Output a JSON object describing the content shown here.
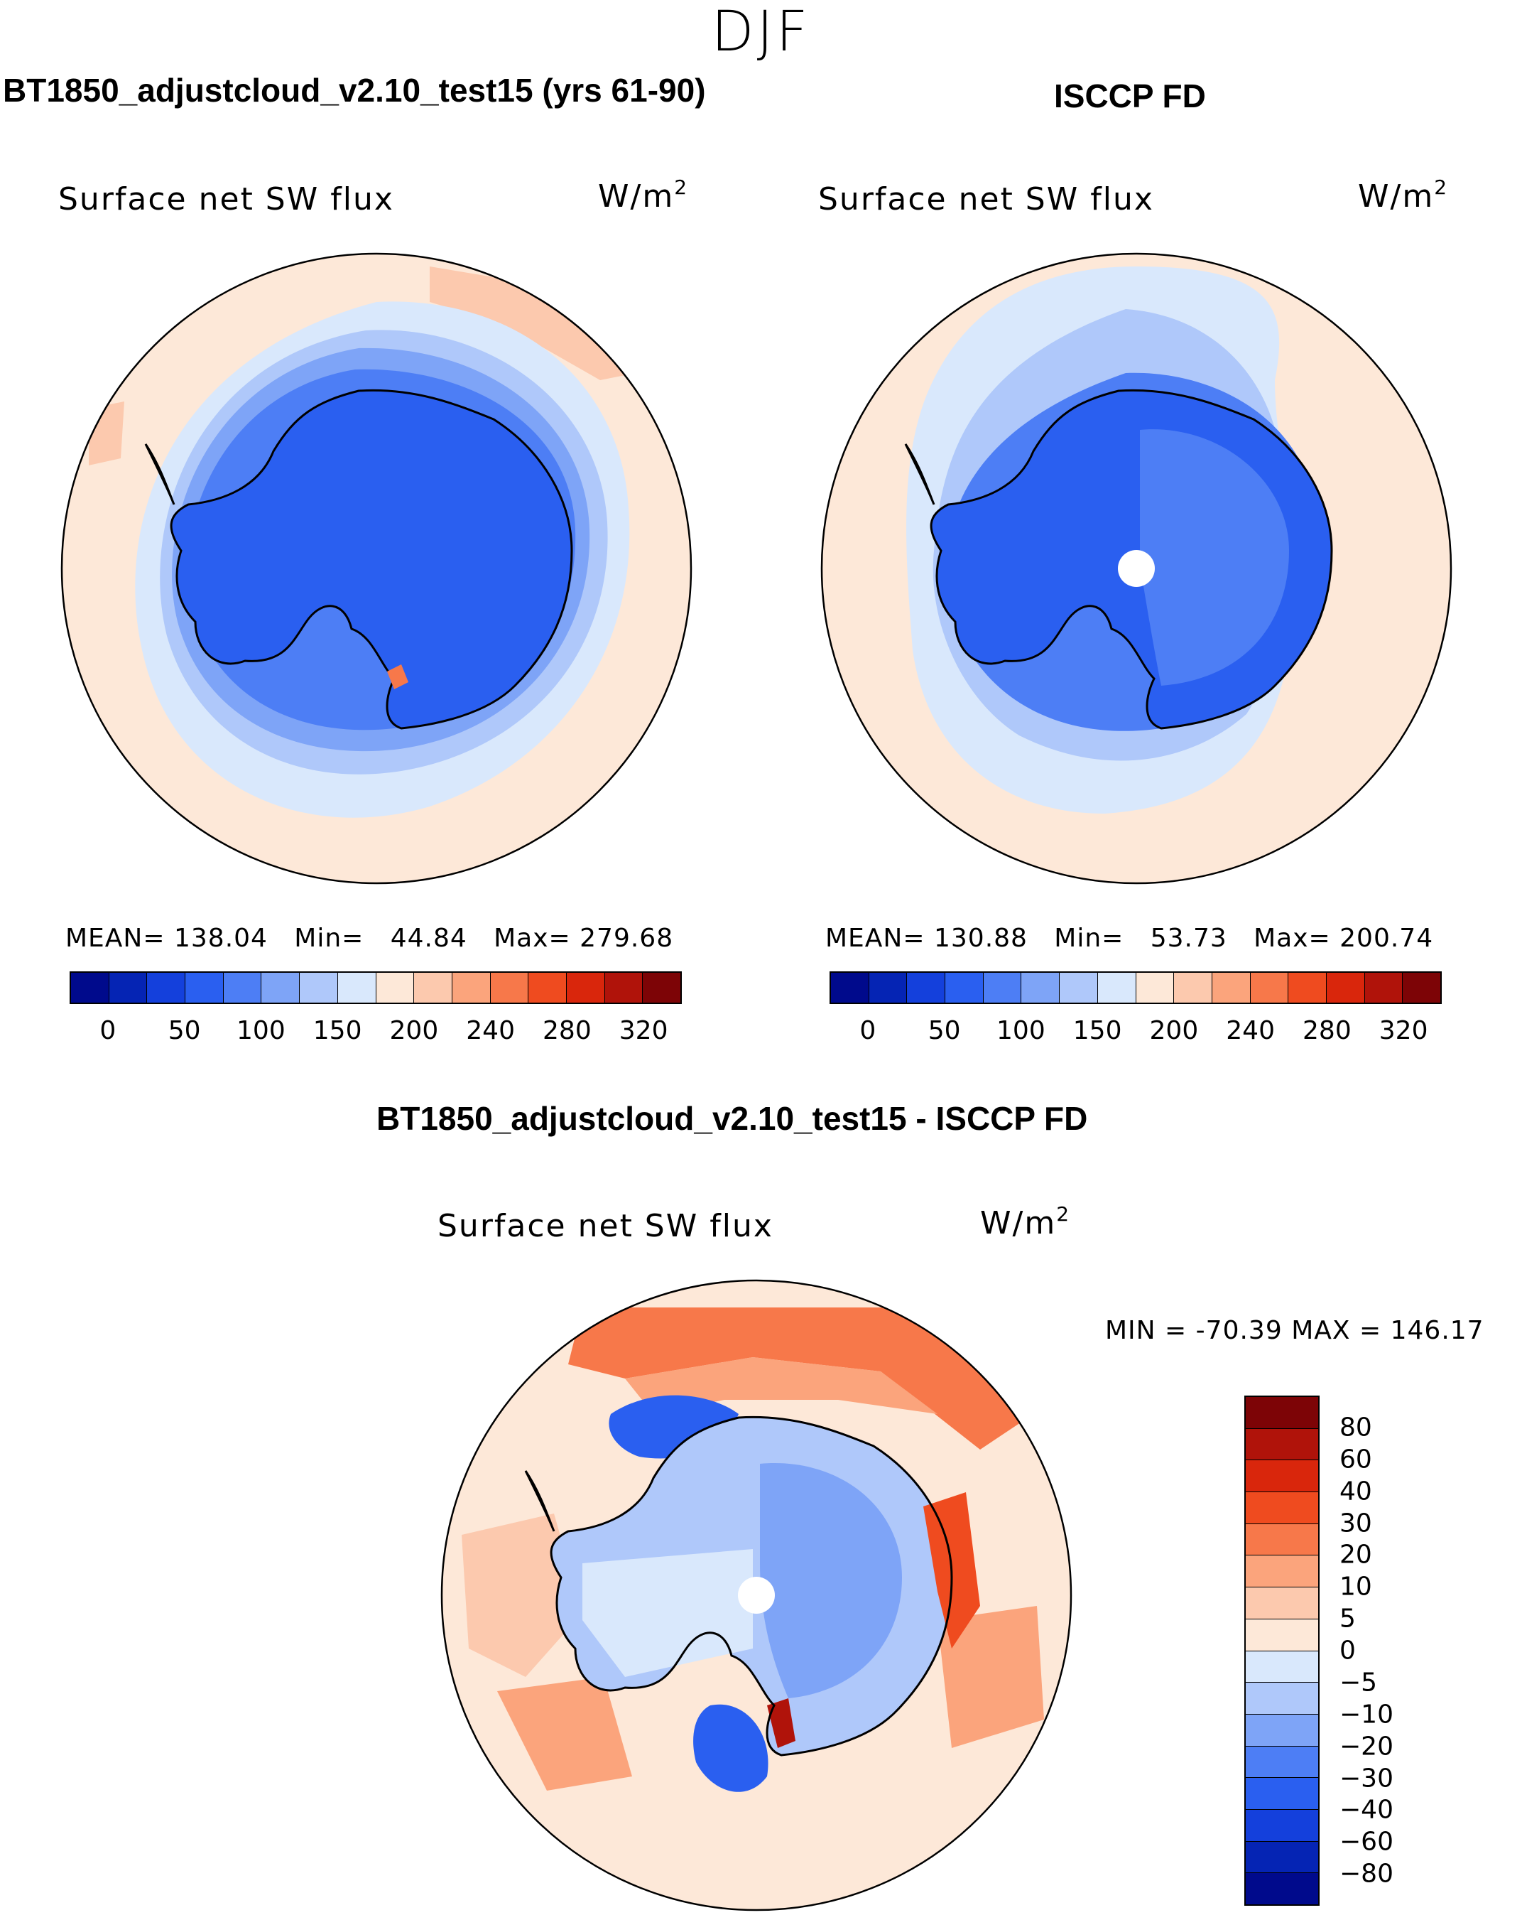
{
  "chart_data": [
    {
      "type": "heatmap",
      "projection": "south-polar-stereographic",
      "season": "DJF",
      "title": "BT1850_adjustcloud_v2.10_test15 (yrs 61-90)",
      "variable": "Surface net SW flux",
      "units": "W/m2",
      "stats": {
        "mean": "138.04",
        "min": "44.84",
        "max": "279.68"
      },
      "colorbar_ticks": [
        "0",
        "50",
        "100",
        "150",
        "200",
        "240",
        "280",
        "320"
      ],
      "colorbar_colors": [
        "#000a8c",
        "#0524b4",
        "#1440dc",
        "#2a5ff0",
        "#4d7ef5",
        "#7ea4f7",
        "#afc8fa",
        "#d9e8fc",
        "#fde8d8",
        "#fcc9ae",
        "#fba47c",
        "#f7784a",
        "#ef4b1f",
        "#d9260c",
        "#b0130a",
        "#7d0406"
      ]
    },
    {
      "type": "heatmap",
      "projection": "south-polar-stereographic",
      "season": "DJF",
      "title": "ISCCP FD",
      "variable": "Surface net SW flux",
      "units": "W/m2",
      "stats": {
        "mean": "130.88",
        "min": "53.73",
        "max": "200.74"
      },
      "colorbar_ticks": [
        "0",
        "50",
        "100",
        "150",
        "200",
        "240",
        "280",
        "320"
      ],
      "colorbar_colors": [
        "#000a8c",
        "#0524b4",
        "#1440dc",
        "#2a5ff0",
        "#4d7ef5",
        "#7ea4f7",
        "#afc8fa",
        "#d9e8fc",
        "#fde8d8",
        "#fcc9ae",
        "#fba47c",
        "#f7784a",
        "#ef4b1f",
        "#d9260c",
        "#b0130a",
        "#7d0406"
      ]
    },
    {
      "type": "heatmap",
      "projection": "south-polar-stereographic",
      "season": "DJF",
      "title": "BT1850_adjustcloud_v2.10_test15 - ISCCP FD",
      "variable": "Surface net SW flux",
      "units": "W/m2",
      "stats": {
        "min": "-70.39",
        "max": "146.17"
      },
      "colorbar_ticks": [
        "80",
        "60",
        "40",
        "30",
        "20",
        "10",
        "5",
        "0",
        "−5",
        "−10",
        "−20",
        "−30",
        "−40",
        "−60",
        "−80"
      ],
      "colorbar_colors": [
        "#7d0406",
        "#b0130a",
        "#d9260c",
        "#ef4b1f",
        "#f7784a",
        "#fba47c",
        "#fcc9ae",
        "#fde8d8",
        "#d9e8fc",
        "#afc8fa",
        "#7ea4f7",
        "#4d7ef5",
        "#2a5ff0",
        "#1440dc",
        "#0524b4",
        "#000a8c"
      ]
    }
  ],
  "labels": {
    "season": "DJF",
    "unit_base": "W/m",
    "unit_exp": "2",
    "mean_label": "MEAN=",
    "min_label": "Min=",
    "max_label": "Max=",
    "diff_min_label": "MIN =",
    "diff_max_label": "MAX ="
  }
}
